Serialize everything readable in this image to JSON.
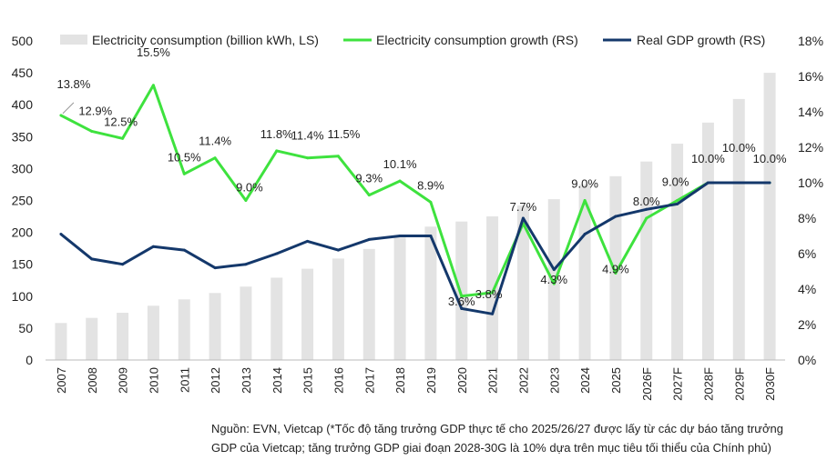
{
  "chart_data": {
    "type": "bar+line",
    "categories": [
      "2007",
      "2008",
      "2009",
      "2010",
      "2011",
      "2012",
      "2013",
      "2014",
      "2015",
      "2016",
      "2017",
      "2018",
      "2019",
      "2020",
      "2021",
      "2022",
      "2023",
      "2024",
      "2025",
      "2026F",
      "2027F",
      "2028F",
      "2029F",
      "2030F"
    ],
    "bars": {
      "name": "Electricity consumption (billion kWh, LS)",
      "axis": "left",
      "color": "#e3e3e3",
      "values": [
        58,
        66,
        74,
        85,
        95,
        105,
        115,
        129,
        143,
        159,
        174,
        192,
        209,
        217,
        225,
        242,
        252,
        275,
        288,
        311,
        339,
        372,
        409,
        450
      ]
    },
    "series": [
      {
        "name": "Electricity consumption growth (RS)",
        "axis": "right",
        "color": "#3ee23e",
        "values": [
          13.8,
          12.9,
          12.5,
          15.5,
          10.5,
          11.4,
          9.0,
          11.8,
          11.4,
          11.5,
          9.3,
          10.1,
          8.9,
          3.6,
          3.8,
          7.7,
          4.3,
          9.0,
          4.9,
          8.0,
          9.0,
          10.0,
          10.0,
          10.0
        ],
        "labels": [
          "13.8%",
          "12.9%",
          "12.5%",
          "15.5%",
          "10.5%",
          "11.4%",
          "9.0%",
          "11.8%",
          "11.4%",
          "11.5%",
          "9.3%",
          "10.1%",
          "8.9%",
          "3.6%",
          "3.8%",
          "7.7%",
          "4.3%",
          "9.0%",
          "4.9%",
          "8.0%",
          "9.0%",
          "10.0%",
          "10.0%",
          "10.0%"
        ]
      },
      {
        "name": "Real GDP growth (RS)",
        "axis": "right",
        "color": "#14386b",
        "values": [
          7.1,
          5.7,
          5.4,
          6.4,
          6.2,
          5.2,
          5.4,
          6.0,
          6.7,
          6.2,
          6.8,
          7.0,
          7.0,
          2.9,
          2.6,
          8.0,
          5.1,
          7.1,
          8.1,
          8.5,
          8.8,
          10.0,
          10.0,
          10.0
        ]
      }
    ],
    "y_left": {
      "min": 0,
      "max": 500,
      "ticks": [
        "0",
        "50",
        "100",
        "150",
        "200",
        "250",
        "300",
        "350",
        "400",
        "450",
        "500"
      ]
    },
    "y_right": {
      "min": 0,
      "max": 18,
      "ticks": [
        "0%",
        "2%",
        "4%",
        "6%",
        "8%",
        "10%",
        "12%",
        "14%",
        "16%",
        "18%"
      ]
    },
    "legend_position": "top",
    "grid": false
  },
  "note": {
    "line1": "Nguồn: EVN, Vietcap (*Tốc độ tăng trưởng GDP thực tế cho 2025/26/27 được lấy từ các dự báo tăng trưởng",
    "line2": "GDP của Vietcap; tăng trưởng GDP giai đoạn 2028-30G là 10% dựa trên mục tiêu tối thiểu của Chính phủ)"
  }
}
